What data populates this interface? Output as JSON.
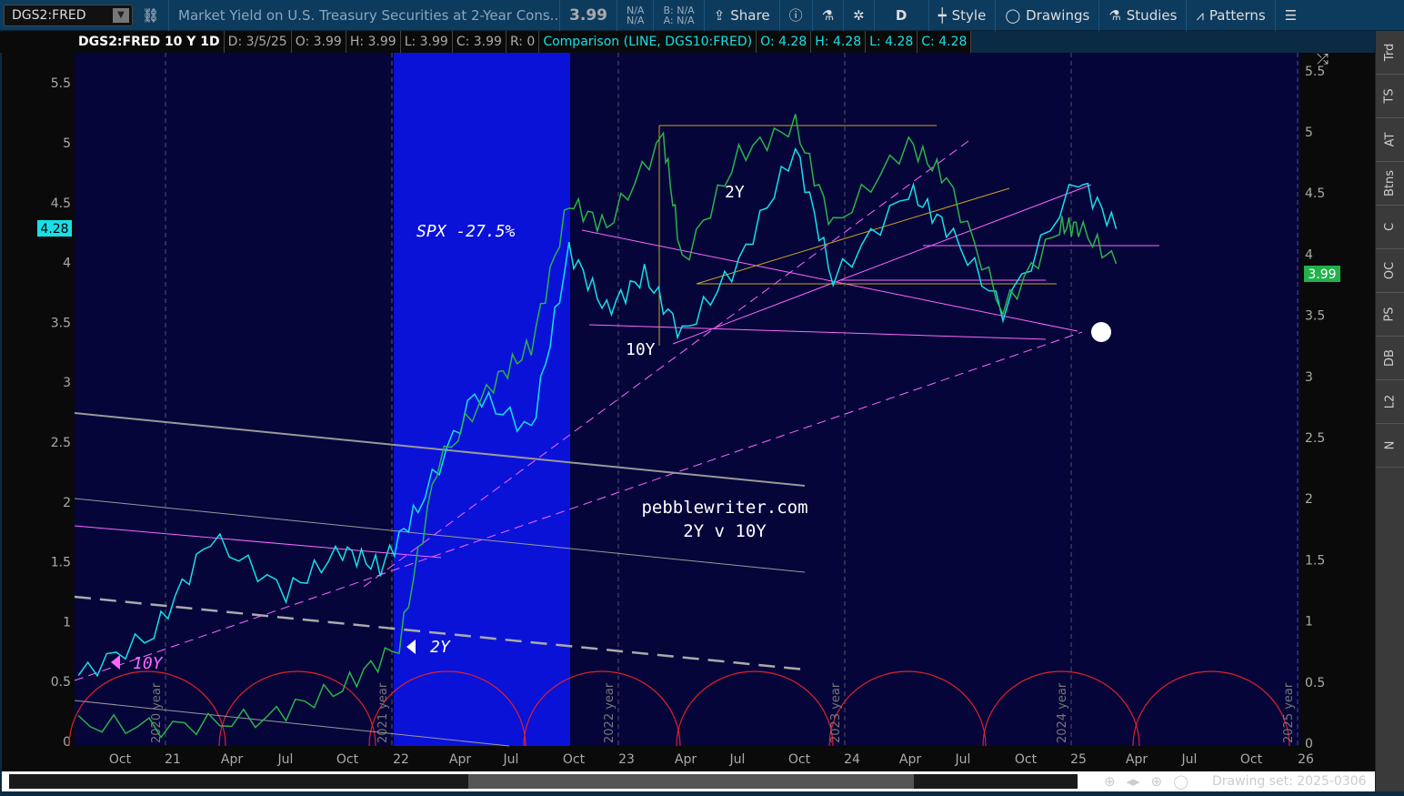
{
  "toolbar": {
    "symbol": "DGS2:FRED",
    "description": "Market Yield on U.S. Treasury Securities at 2-Year Cons...",
    "last": "3.99",
    "na1": "N/A",
    "na2": "N/A",
    "bid": "B: N/A",
    "ask": "A: N/A",
    "share": "Share",
    "period": "D",
    "style": "Style",
    "drawings": "Drawings",
    "studies": "Studies",
    "patterns": "Patterns"
  },
  "header": {
    "title": "DGS2:FRED 10 Y 1D",
    "d": "D: 3/5/25",
    "o": "O: 3.99",
    "h": "H: 3.99",
    "l": "L: 3.99",
    "c": "C: 3.99",
    "r": "R: 0",
    "comparison": "Comparison (LINE, DGS10:FRED)",
    "co": "O: 4.28",
    "ch": "H: 4.28",
    "cl": "L: 4.28",
    "cc": "C: 4.28"
  },
  "side_tabs": [
    "Trd",
    "TS",
    "AT",
    "Btns",
    "C",
    "OC",
    "PS",
    "DB",
    "L2",
    "N"
  ],
  "bottom": {
    "drawing_set": "Drawing set: 2025-0306"
  },
  "colors": {
    "background": "#05053a",
    "spx_band": "#0a12d8",
    "ten_year": "#16e0e8",
    "two_year": "#2bb34a",
    "annotation": "#ff66ff",
    "cycle_arcs": "#e0202a"
  },
  "annotations": {
    "spx": "SPX -27.5%",
    "label_2y": "2Y",
    "label_10y": "10Y",
    "arrow_10y": "10Y",
    "arrow_2y": "2Y",
    "site": "pebblewriter.com",
    "subtitle": "2Y v 10Y",
    "year_labels": [
      "2020 year",
      "2021 year",
      "2022 year",
      "2023 year",
      "2024 year",
      "2025 year"
    ]
  },
  "chart_data": {
    "type": "line",
    "left_axis": [
      "5.5",
      "5",
      "4.5",
      "4",
      "3.5",
      "3",
      "2.5",
      "2",
      "1.5",
      "1",
      "0.5",
      "0"
    ],
    "right_axis": [
      "5.5",
      "5",
      "4.5",
      "4",
      "3.5",
      "3",
      "2.5",
      "2",
      "1.5",
      "1",
      "0.5",
      "0"
    ],
    "x_ticks": [
      "Oct",
      "21",
      "Apr",
      "Jul",
      "Oct",
      "22",
      "Apr",
      "Jul",
      "Oct",
      "23",
      "Apr",
      "Jul",
      "Oct",
      "24",
      "Apr",
      "Jul",
      "Oct",
      "25",
      "Apr",
      "Jul",
      "Oct",
      "26"
    ],
    "ylim": [
      0,
      5.6
    ],
    "last_left": "4.28",
    "last_right": "3.99",
    "series": [
      {
        "name": "DGS10:FRED",
        "points": [
          [
            "2020-08",
            0.55
          ],
          [
            "2020-12",
            0.9
          ],
          [
            "2021-03",
            1.7
          ],
          [
            "2021-07",
            1.25
          ],
          [
            "2021-10",
            1.6
          ],
          [
            "2021-12",
            1.45
          ],
          [
            "2022-02",
            1.95
          ],
          [
            "2022-05",
            2.9
          ],
          [
            "2022-08",
            2.6
          ],
          [
            "2022-10",
            4.1
          ],
          [
            "2022-12",
            3.6
          ],
          [
            "2023-02",
            3.9
          ],
          [
            "2023-04",
            3.4
          ],
          [
            "2023-07",
            4.0
          ],
          [
            "2023-10",
            4.95
          ],
          [
            "2023-12",
            3.85
          ],
          [
            "2024-04",
            4.6
          ],
          [
            "2024-06",
            4.3
          ],
          [
            "2024-09",
            3.6
          ],
          [
            "2025-01",
            4.7
          ],
          [
            "2025-03",
            4.28
          ]
        ]
      },
      {
        "name": "DGS2:FRED",
        "points": [
          [
            "2020-08",
            0.14
          ],
          [
            "2021-01",
            0.12
          ],
          [
            "2021-06",
            0.2
          ],
          [
            "2021-10",
            0.45
          ],
          [
            "2022-01",
            0.8
          ],
          [
            "2022-03",
            2.3
          ],
          [
            "2022-06",
            3.0
          ],
          [
            "2022-08",
            3.3
          ],
          [
            "2022-10",
            4.5
          ],
          [
            "2022-12",
            4.3
          ],
          [
            "2023-03",
            5.05
          ],
          [
            "2023-04",
            4.0
          ],
          [
            "2023-07",
            4.9
          ],
          [
            "2023-10",
            5.15
          ],
          [
            "2023-12",
            4.3
          ],
          [
            "2024-04",
            5.0
          ],
          [
            "2024-06",
            4.7
          ],
          [
            "2024-09",
            3.6
          ],
          [
            "2024-12",
            4.3
          ],
          [
            "2025-01",
            4.3
          ],
          [
            "2025-03",
            3.99
          ]
        ]
      }
    ]
  }
}
